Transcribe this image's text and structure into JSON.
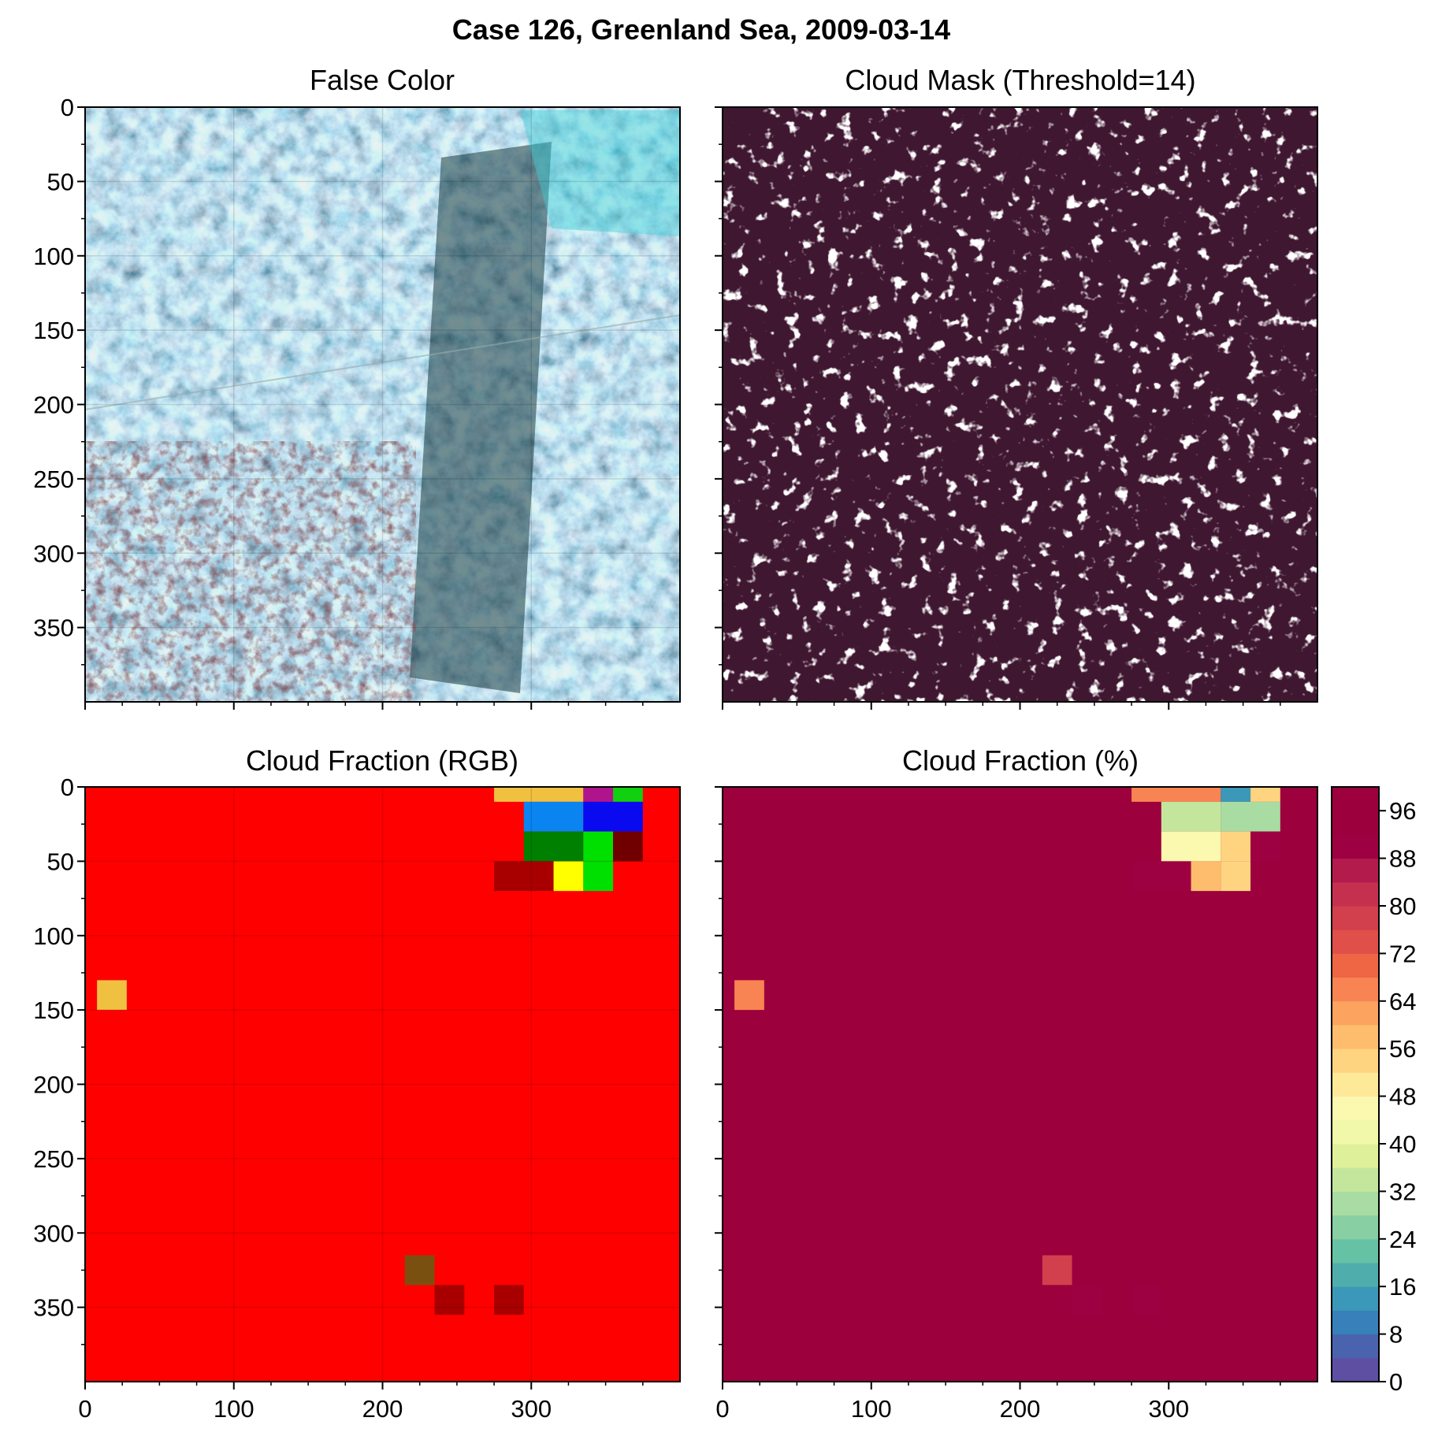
{
  "figure": {
    "title": "Case 126, Greenland Sea, 2009-03-14"
  },
  "colors": {
    "mask_background": "#401731",
    "mask_cloud": "#ffffff",
    "rgb_background": "#ff0000",
    "pct_background": "#9c003d",
    "frame": "#000000"
  },
  "chart_data": [
    {
      "type": "image",
      "title": "False Color",
      "description_kind": "satellite false-color composite",
      "xlim": [
        0,
        400
      ],
      "ylim": [
        400,
        0
      ],
      "yticks": [
        0,
        50,
        100,
        150,
        200,
        250,
        300,
        350
      ],
      "xticks": [
        0,
        100,
        200,
        300
      ],
      "show_x_tick_labels": false,
      "show_y_tick_labels": true,
      "grid": true
    },
    {
      "type": "image",
      "title": "Cloud Mask (Threshold=14)",
      "description_kind": "binary cloud mask",
      "xlim": [
        0,
        400
      ],
      "ylim": [
        400,
        0
      ],
      "yticks": [
        0,
        50,
        100,
        150,
        200,
        250,
        300,
        350
      ],
      "xticks": [
        0,
        100,
        200,
        300
      ],
      "show_x_tick_labels": false,
      "show_y_tick_labels": false,
      "grid": false
    },
    {
      "type": "heatmap",
      "title": "Cloud Fraction (RGB)",
      "xlim": [
        0,
        400
      ],
      "ylim": [
        400,
        0
      ],
      "yticks": [
        0,
        50,
        100,
        150,
        200,
        250,
        300,
        350
      ],
      "xticks": [
        0,
        100,
        200,
        300
      ],
      "xticklabels": [
        "0",
        "100",
        "200",
        "300"
      ],
      "show_x_tick_labels": true,
      "show_y_tick_labels": true,
      "grid": true,
      "cell_size": 20,
      "default_color": "#ff0000",
      "cells": [
        {
          "x": 275,
          "y": 0,
          "w": 60,
          "h": 10,
          "color": "#f0c040"
        },
        {
          "x": 335,
          "y": 0,
          "w": 20,
          "h": 10,
          "color": "#b0148c"
        },
        {
          "x": 355,
          "y": 0,
          "w": 20,
          "h": 10,
          "color": "#10d010"
        },
        {
          "x": 295,
          "y": 10,
          "w": 40,
          "h": 20,
          "color": "#0a84f0"
        },
        {
          "x": 335,
          "y": 10,
          "w": 40,
          "h": 20,
          "color": "#0a0af0"
        },
        {
          "x": 295,
          "y": 30,
          "w": 40,
          "h": 20,
          "color": "#008000"
        },
        {
          "x": 335,
          "y": 30,
          "w": 20,
          "h": 20,
          "color": "#00e000"
        },
        {
          "x": 355,
          "y": 30,
          "w": 20,
          "h": 20,
          "color": "#700000"
        },
        {
          "x": 275,
          "y": 50,
          "w": 40,
          "h": 20,
          "color": "#a80000"
        },
        {
          "x": 315,
          "y": 50,
          "w": 20,
          "h": 20,
          "color": "#ffff00"
        },
        {
          "x": 335,
          "y": 50,
          "w": 20,
          "h": 20,
          "color": "#00e000"
        },
        {
          "x": 8,
          "y": 130,
          "w": 20,
          "h": 20,
          "color": "#f0c040"
        },
        {
          "x": 215,
          "y": 315,
          "w": 20,
          "h": 20,
          "color": "#7a5010"
        },
        {
          "x": 235,
          "y": 335,
          "w": 20,
          "h": 20,
          "color": "#a80000"
        },
        {
          "x": 275,
          "y": 335,
          "w": 20,
          "h": 20,
          "color": "#a80000"
        }
      ]
    },
    {
      "type": "heatmap",
      "title": "Cloud Fraction (%)",
      "xlim": [
        0,
        400
      ],
      "ylim": [
        400,
        0
      ],
      "yticks": [
        0,
        50,
        100,
        150,
        200,
        250,
        300,
        350
      ],
      "xticks": [
        0,
        100,
        200,
        300
      ],
      "xticklabels": [
        "0",
        "100",
        "200",
        "300"
      ],
      "show_x_tick_labels": true,
      "show_y_tick_labels": false,
      "grid": false,
      "default_value": 100,
      "cells": [
        {
          "x": 275,
          "y": 0,
          "w": 60,
          "h": 10,
          "value": 64
        },
        {
          "x": 335,
          "y": 0,
          "w": 20,
          "h": 10,
          "value": 12
        },
        {
          "x": 355,
          "y": 0,
          "w": 20,
          "h": 10,
          "value": 52
        },
        {
          "x": 295,
          "y": 10,
          "w": 40,
          "h": 20,
          "value": 32
        },
        {
          "x": 335,
          "y": 10,
          "w": 40,
          "h": 20,
          "value": 30
        },
        {
          "x": 295,
          "y": 30,
          "w": 40,
          "h": 20,
          "value": 46
        },
        {
          "x": 335,
          "y": 30,
          "w": 20,
          "h": 20,
          "value": 52
        },
        {
          "x": 355,
          "y": 30,
          "w": 20,
          "h": 20,
          "value": 88
        },
        {
          "x": 275,
          "y": 50,
          "w": 40,
          "h": 20,
          "value": 90
        },
        {
          "x": 315,
          "y": 50,
          "w": 20,
          "h": 20,
          "value": 58
        },
        {
          "x": 335,
          "y": 50,
          "w": 20,
          "h": 20,
          "value": 52
        },
        {
          "x": 8,
          "y": 130,
          "w": 20,
          "h": 20,
          "value": 64
        },
        {
          "x": 215,
          "y": 315,
          "w": 20,
          "h": 20,
          "value": 78
        },
        {
          "x": 235,
          "y": 335,
          "w": 20,
          "h": 20,
          "value": 90
        },
        {
          "x": 275,
          "y": 335,
          "w": 20,
          "h": 20,
          "value": 90
        }
      ],
      "colorbar": {
        "min": 0,
        "max": 100,
        "step": 4,
        "ticks": [
          0,
          8,
          16,
          24,
          32,
          40,
          48,
          56,
          64,
          72,
          80,
          88,
          96
        ],
        "ticklabels": [
          "0",
          "8",
          "16",
          "24",
          "32",
          "40",
          "48",
          "56",
          "64",
          "72",
          "80",
          "88",
          "96"
        ],
        "colors": [
          "#5e4fa2",
          "#4a63ae",
          "#3880b9",
          "#3b98b8",
          "#4faeab",
          "#66c2a5",
          "#88cfa4",
          "#a8dca2",
          "#c4e69c",
          "#dff09a",
          "#f2f8a9",
          "#fbf8b0",
          "#fee999",
          "#fed481",
          "#fdbd6d",
          "#fca35f",
          "#f88453",
          "#ef6645",
          "#e04f4a",
          "#d1404c",
          "#c5304e",
          "#b31b4d",
          "#9e0142",
          "#9c003d",
          "#9c003d"
        ]
      }
    }
  ]
}
